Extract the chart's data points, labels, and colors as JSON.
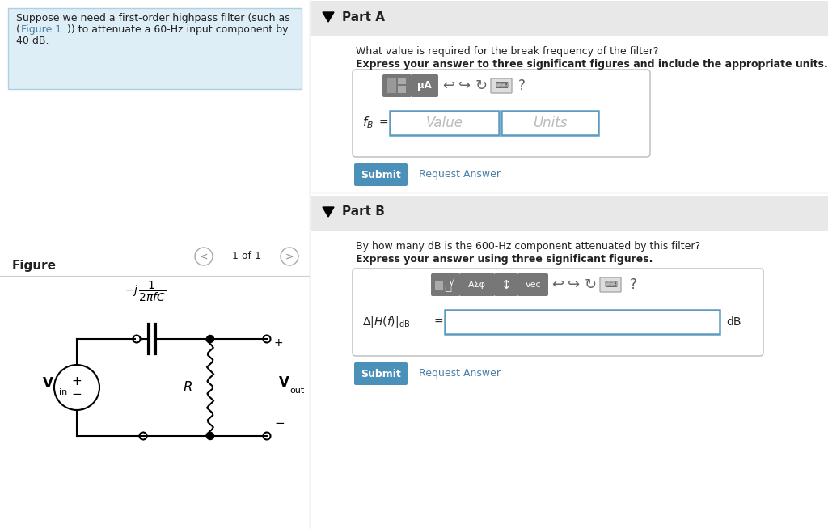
{
  "white": "#ffffff",
  "blue_btn": "#4a90b8",
  "blue_link": "#4a7fa5",
  "input_border": "#5b9bbf",
  "text_dark": "#222222",
  "section_header_bg": "#e8e8e8",
  "problem_bg": "#ddeef6",
  "problem_border": "#b0d0e0",
  "partA_q1": "What value is required for the break frequency of the filter?",
  "partA_q2": "Express your answer to three significant figures and include the appropriate units.",
  "partB_q1": "By how many dB is the 600-Hz component attenuated by this filter?",
  "partB_q2": "Express your answer using three significant figures."
}
